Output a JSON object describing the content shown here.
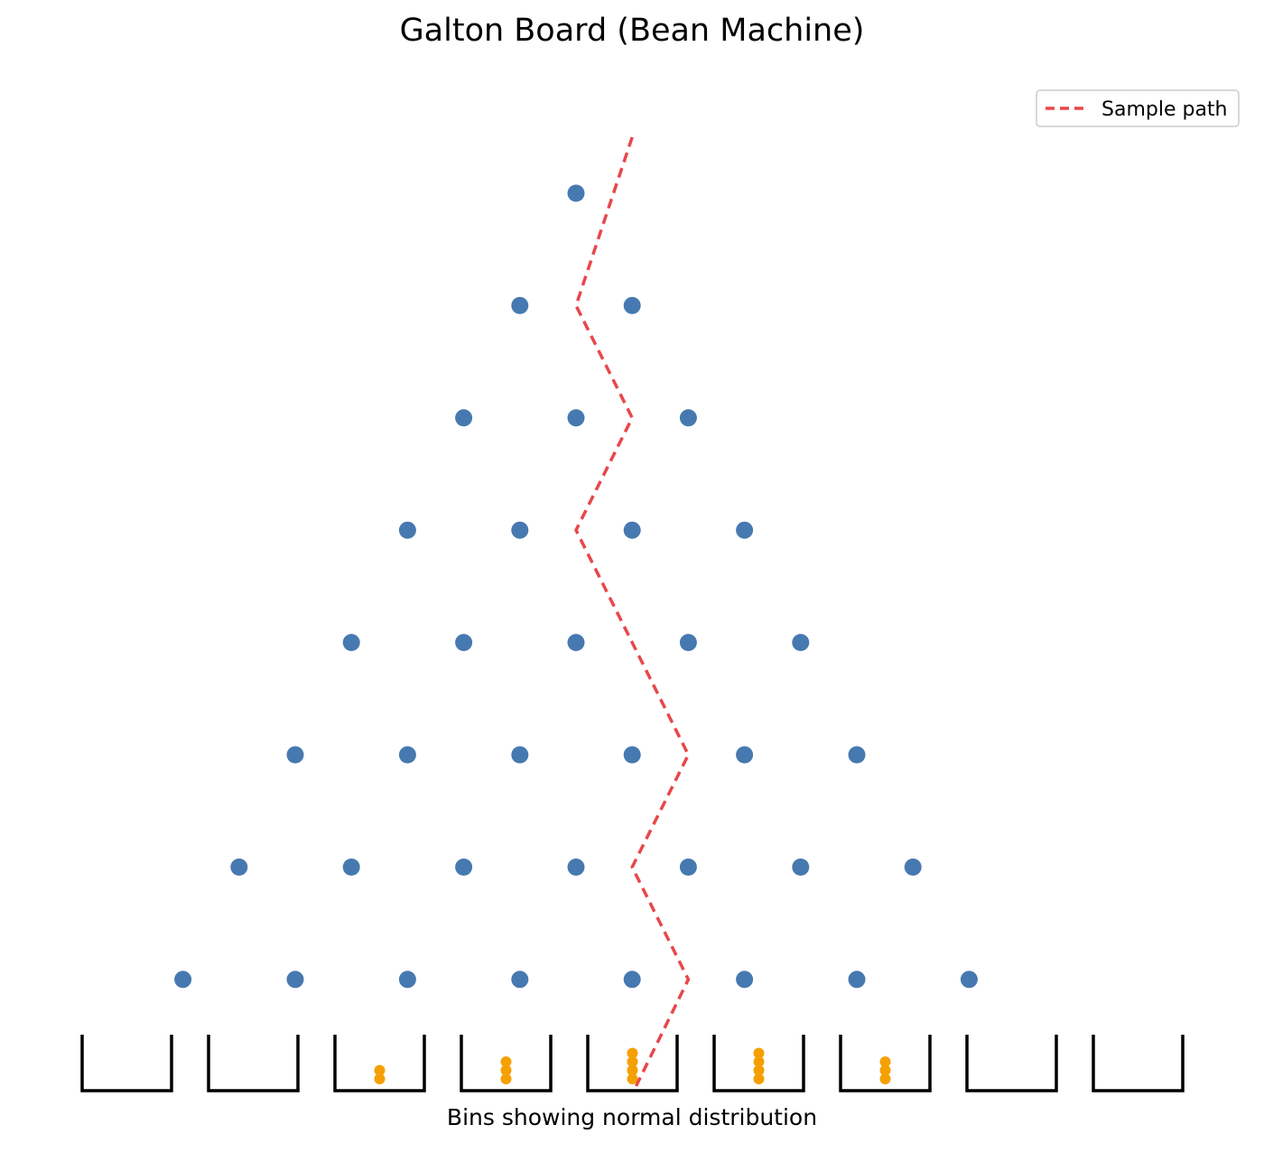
{
  "title": "Galton Board (Bean Machine)",
  "caption": "Bins showing normal distribution",
  "legend": {
    "label": "Sample path",
    "placement": "top-right"
  },
  "colors": {
    "peg": "#4679b0",
    "path": "#e8474b",
    "bead": "#f5a000",
    "bin": "#000000"
  },
  "chart_data": {
    "type": "diagram",
    "peg_rows": 8,
    "bins_count": 9,
    "bin_bead_counts": [
      0,
      0,
      2,
      3,
      4,
      4,
      3,
      0,
      0
    ],
    "sample_path_steps": [
      "left",
      "right",
      "left",
      "right",
      "right",
      "left",
      "right"
    ],
    "sample_path_final_bin": 4
  }
}
